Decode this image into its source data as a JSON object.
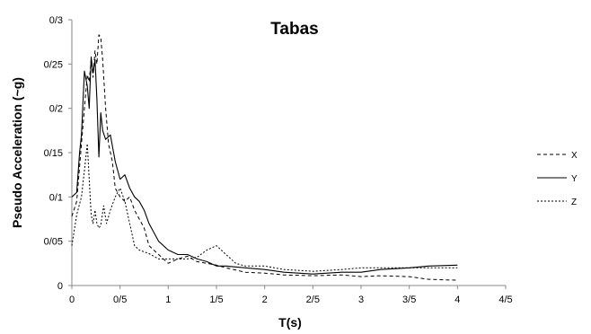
{
  "chart_data": {
    "type": "line",
    "title": "Tabas",
    "xlabel": "T(s)",
    "ylabel": "Pseudo Acceleration (~g)",
    "xlim": [
      0,
      4.5
    ],
    "ylim": [
      0,
      0.3
    ],
    "x_ticks": [
      0,
      0.5,
      1,
      1.5,
      2,
      2.5,
      3,
      3.5,
      4,
      4.5
    ],
    "x_tick_labels": [
      "0",
      "0/5",
      "1",
      "1/5",
      "2",
      "2/5",
      "3",
      "3/5",
      "4",
      "4/5"
    ],
    "y_ticks": [
      0,
      0.05,
      0.1,
      0.15,
      0.2,
      0.25,
      0.3
    ],
    "y_tick_labels": [
      "0",
      "0/05",
      "0/1",
      "0/15",
      "0/2",
      "0/25",
      "0/3"
    ],
    "grid": false,
    "legend_position": "right",
    "series": [
      {
        "name": "X",
        "dash": "dashed",
        "x": [
          0,
          0.05,
          0.1,
          0.13,
          0.16,
          0.18,
          0.2,
          0.22,
          0.24,
          0.26,
          0.28,
          0.3,
          0.32,
          0.35,
          0.38,
          0.42,
          0.45,
          0.5,
          0.55,
          0.6,
          0.65,
          0.7,
          0.75,
          0.8,
          0.9,
          1.0,
          1.1,
          1.2,
          1.3,
          1.4,
          1.5,
          1.6,
          1.8,
          2.0,
          2.2,
          2.5,
          2.8,
          3.0,
          3.2,
          3.5,
          3.7,
          4.0
        ],
        "y": [
          0.078,
          0.095,
          0.16,
          0.2,
          0.238,
          0.23,
          0.255,
          0.235,
          0.265,
          0.25,
          0.283,
          0.28,
          0.255,
          0.2,
          0.16,
          0.14,
          0.11,
          0.1,
          0.095,
          0.1,
          0.085,
          0.075,
          0.065,
          0.045,
          0.035,
          0.025,
          0.03,
          0.033,
          0.027,
          0.025,
          0.023,
          0.02,
          0.015,
          0.014,
          0.012,
          0.011,
          0.012,
          0.01,
          0.011,
          0.01,
          0.007,
          0.006
        ]
      },
      {
        "name": "Y",
        "dash": "solid",
        "x": [
          0,
          0.05,
          0.08,
          0.1,
          0.13,
          0.16,
          0.18,
          0.2,
          0.22,
          0.24,
          0.26,
          0.28,
          0.3,
          0.32,
          0.35,
          0.4,
          0.45,
          0.5,
          0.55,
          0.6,
          0.65,
          0.7,
          0.75,
          0.8,
          0.9,
          1.0,
          1.1,
          1.2,
          1.3,
          1.4,
          1.5,
          1.6,
          1.8,
          2.0,
          2.2,
          2.5,
          2.8,
          3.0,
          3.2,
          3.5,
          3.7,
          4.0
        ],
        "y": [
          0.1,
          0.105,
          0.15,
          0.17,
          0.242,
          0.225,
          0.2,
          0.258,
          0.24,
          0.255,
          0.21,
          0.145,
          0.195,
          0.175,
          0.165,
          0.17,
          0.14,
          0.12,
          0.125,
          0.11,
          0.1,
          0.095,
          0.085,
          0.07,
          0.05,
          0.04,
          0.035,
          0.035,
          0.03,
          0.027,
          0.022,
          0.022,
          0.02,
          0.018,
          0.015,
          0.013,
          0.015,
          0.015,
          0.018,
          0.02,
          0.022,
          0.023
        ]
      },
      {
        "name": "Z",
        "dash": "dotted",
        "x": [
          0,
          0.05,
          0.1,
          0.13,
          0.16,
          0.18,
          0.2,
          0.22,
          0.24,
          0.26,
          0.28,
          0.3,
          0.33,
          0.36,
          0.4,
          0.45,
          0.5,
          0.55,
          0.6,
          0.65,
          0.7,
          0.75,
          0.8,
          0.9,
          1.0,
          1.1,
          1.2,
          1.3,
          1.4,
          1.5,
          1.6,
          1.7,
          1.8,
          2.0,
          2.2,
          2.5,
          2.8,
          3.0,
          3.2,
          3.5,
          3.7,
          4.0
        ],
        "y": [
          0.045,
          0.08,
          0.1,
          0.13,
          0.16,
          0.12,
          0.08,
          0.07,
          0.085,
          0.07,
          0.065,
          0.068,
          0.09,
          0.07,
          0.085,
          0.1,
          0.11,
          0.095,
          0.07,
          0.045,
          0.04,
          0.038,
          0.036,
          0.03,
          0.03,
          0.03,
          0.03,
          0.032,
          0.04,
          0.045,
          0.035,
          0.025,
          0.022,
          0.022,
          0.018,
          0.016,
          0.018,
          0.02,
          0.02,
          0.02,
          0.02,
          0.02
        ]
      }
    ]
  }
}
